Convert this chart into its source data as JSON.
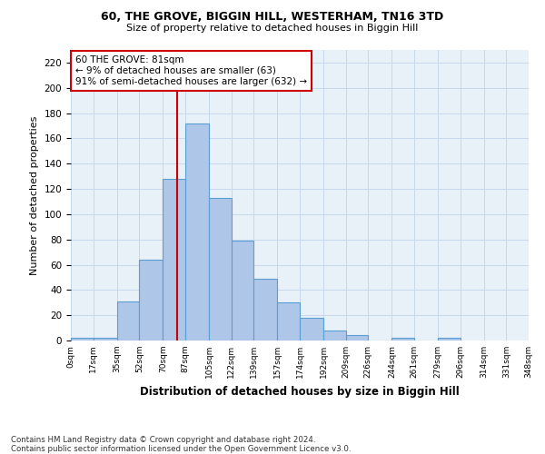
{
  "title1": "60, THE GROVE, BIGGIN HILL, WESTERHAM, TN16 3TD",
  "title2": "Size of property relative to detached houses in Biggin Hill",
  "xlabel": "Distribution of detached houses by size in Biggin Hill",
  "ylabel": "Number of detached properties",
  "footer1": "Contains HM Land Registry data © Crown copyright and database right 2024.",
  "footer2": "Contains public sector information licensed under the Open Government Licence v3.0.",
  "bar_values": [
    2,
    2,
    31,
    64,
    128,
    172,
    113,
    79,
    49,
    30,
    18,
    8,
    4,
    0,
    2,
    0,
    2
  ],
  "bar_color": "#aec6e8",
  "bar_edge_color": "#5a9fd4",
  "grid_color": "#c8d8ec",
  "background_color": "#e8f0f8",
  "vline_color": "#cc0000",
  "annotation_text": "60 THE GROVE: 81sqm\n← 9% of detached houses are smaller (63)\n91% of semi-detached houses are larger (632) →",
  "annotation_box_color": "#ffffff",
  "annotation_box_edge": "#cc0000",
  "ylim": [
    0,
    230
  ],
  "yticks": [
    0,
    20,
    40,
    60,
    80,
    100,
    120,
    140,
    160,
    180,
    200,
    220
  ],
  "bin_edges": [
    0,
    17,
    35,
    52,
    70,
    87,
    105,
    122,
    139,
    157,
    174,
    192,
    209,
    226,
    244,
    261,
    279,
    296,
    314,
    331,
    348
  ],
  "property_sqm": 81
}
